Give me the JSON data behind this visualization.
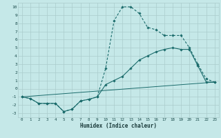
{
  "xlabel": "Humidex (Indice chaleur)",
  "background_color": "#c5e8e8",
  "grid_color": "#aacccc",
  "line_color": "#1a6b6b",
  "xlim": [
    -0.5,
    23.5
  ],
  "ylim": [
    -3.5,
    10.5
  ],
  "yticks": [
    -3,
    -2,
    -1,
    0,
    1,
    2,
    3,
    4,
    5,
    6,
    7,
    8,
    9,
    10
  ],
  "xticks": [
    0,
    1,
    2,
    3,
    4,
    5,
    6,
    7,
    8,
    9,
    10,
    11,
    12,
    13,
    14,
    15,
    16,
    17,
    18,
    19,
    20,
    21,
    22,
    23
  ],
  "series0": {
    "x": [
      0,
      1,
      2,
      3,
      4,
      5,
      6,
      7,
      8,
      9,
      10,
      11,
      12,
      13,
      14,
      15,
      16,
      17,
      18,
      19,
      20,
      21,
      22,
      23
    ],
    "y": [
      -1,
      -1.2,
      -1.8,
      -1.8,
      -1.8,
      -2.8,
      -2.5,
      -1.5,
      -1.3,
      -1.0,
      2.5,
      8.3,
      10.0,
      10.0,
      9.2,
      7.5,
      7.2,
      6.5,
      6.5,
      6.5,
      5.0,
      3.0,
      1.2,
      0.8
    ]
  },
  "series1": {
    "x": [
      0,
      1,
      2,
      3,
      4,
      5,
      6,
      7,
      8,
      9,
      10,
      11,
      12,
      13,
      14,
      15,
      16,
      17,
      18,
      19,
      20,
      21,
      22,
      23
    ],
    "y": [
      -1,
      -1.2,
      -1.8,
      -1.8,
      -1.8,
      -2.8,
      -2.5,
      -1.5,
      -1.3,
      -1.0,
      0.5,
      1.0,
      1.5,
      2.5,
      3.5,
      4.0,
      4.5,
      4.8,
      5.0,
      4.8,
      4.8,
      2.8,
      0.8,
      0.8
    ]
  },
  "series2": {
    "x": [
      0,
      23
    ],
    "y": [
      -1,
      0.8
    ]
  }
}
